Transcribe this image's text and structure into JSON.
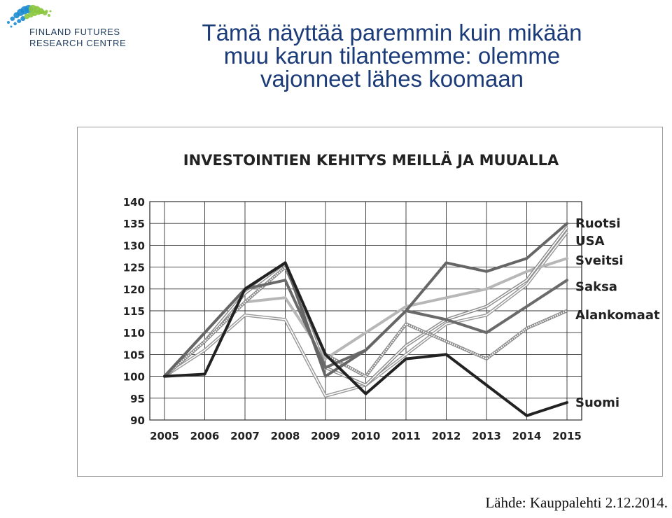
{
  "header": {
    "logo_line1": "FINLAND FUTURES",
    "logo_line2": "RESEARCH CENTRE",
    "headline_lines": [
      "Tämä näyttää paremmin kuin mikään",
      "muu karun tilanteemme: olemme",
      "vajonneet lähes koomaan"
    ]
  },
  "source": "Lähde: Kauppalehti 2.12.2014.",
  "colors": {
    "headline": "#1a3a78",
    "logo_blue": "#1b8bd0",
    "logo_green": "#8cc63f",
    "logo_navy": "#1d3a5c"
  },
  "chart_data": {
    "type": "line",
    "title": "INVESTOINTIEN KEHITYS MEILLÄ JA MUUALLA",
    "xlabel": "",
    "ylabel": "",
    "ylim": [
      90,
      140
    ],
    "yticks": [
      90,
      95,
      100,
      105,
      110,
      115,
      120,
      125,
      130,
      135,
      140
    ],
    "grid": true,
    "legend": "right",
    "categories": [
      "2005",
      "2006",
      "2007",
      "2008",
      "2009",
      "2010",
      "2011",
      "2012",
      "2013",
      "2014",
      "2015"
    ],
    "series": [
      {
        "name": "Ruotsi",
        "label_at": 135.0,
        "color": "#666666",
        "style": "solid",
        "values": [
          100,
          110,
          120,
          126,
          100,
          106,
          115,
          126,
          124,
          127,
          135
        ]
      },
      {
        "name": "USA",
        "label_at": 131.0,
        "color": "#8c8c8c",
        "style": "double",
        "values": [
          100,
          108,
          119,
          126,
          102,
          98,
          107,
          113,
          116,
          122,
          134
        ]
      },
      {
        "name": "Sveitsi",
        "label_at": 126.5,
        "color": "#b7b7b7",
        "style": "solid",
        "values": [
          100,
          108,
          117,
          118,
          104,
          110,
          116,
          118,
          120,
          124,
          127
        ]
      },
      {
        "name": "Saksa",
        "label_at": 120.5,
        "color": "#6a6a6a",
        "style": "solid",
        "values": [
          100,
          110,
          120,
          122,
          102,
          106,
          115,
          113,
          110,
          116,
          122
        ]
      },
      {
        "name": "Alankomaat",
        "label_at": 114.0,
        "color": "#8a8a8a",
        "style": "hatched",
        "values": [
          100,
          108,
          117,
          125,
          105,
          100,
          112,
          108,
          104,
          111,
          115
        ]
      },
      {
        "name": "Suomi",
        "label_at": 94.0,
        "color": "#222222",
        "style": "solid",
        "values": [
          100,
          100.5,
          120,
          126,
          105,
          96,
          104,
          105,
          98,
          91,
          94
        ]
      },
      {
        "name": "",
        "color": "#999999",
        "style": "double",
        "values": [
          100,
          106,
          114,
          113,
          95.5,
          98,
          105,
          112,
          114,
          121,
          133
        ]
      }
    ]
  }
}
